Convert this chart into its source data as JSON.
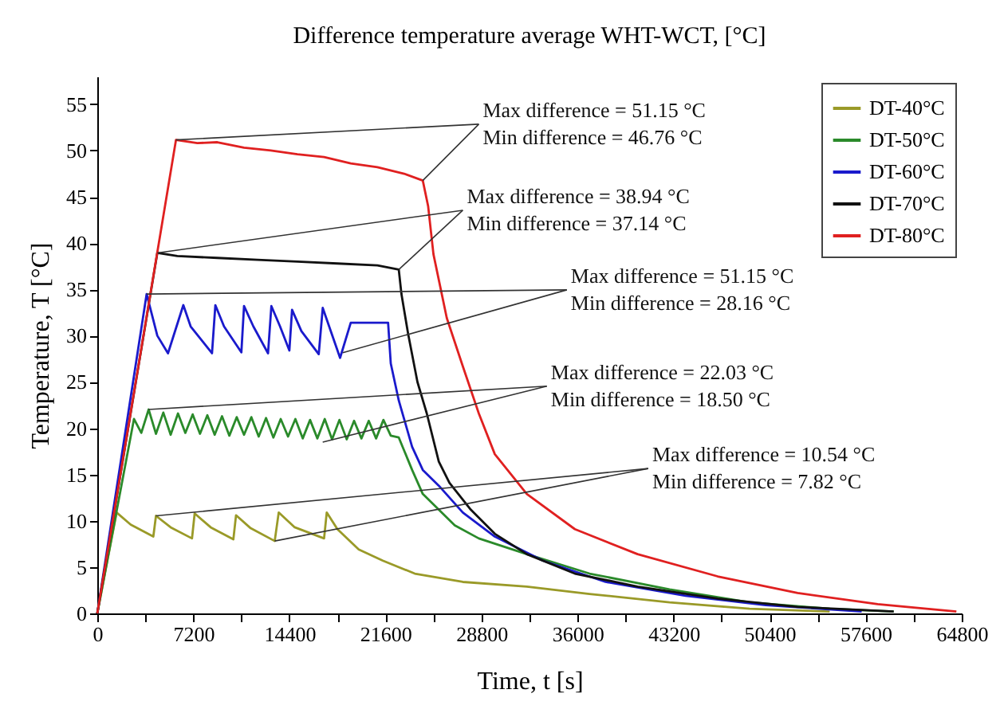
{
  "chart_data": {
    "type": "line",
    "title": "Difference temperature average WHT-WCT, [°C]",
    "xlabel": "Time, t [s]",
    "ylabel": "Temperature, T [°C]",
    "xlim": [
      0,
      64800
    ],
    "ylim": [
      0,
      58
    ],
    "xticks": [
      0,
      {
        "value": 3600,
        "label": null
      },
      7200,
      {
        "value": 10800,
        "label": null
      },
      14400,
      {
        "value": 18000,
        "label": null
      },
      21600,
      {
        "value": 25200,
        "label": null
      },
      28800,
      {
        "value": 32400,
        "label": null
      },
      36000,
      {
        "value": 39600,
        "label": null
      },
      43200,
      {
        "value": 46800,
        "label": null
      },
      50400,
      {
        "value": 54000,
        "label": null
      },
      57600,
      {
        "value": 61200,
        "label": null
      },
      64800
    ],
    "yticks": [
      0,
      5,
      10,
      15,
      20,
      25,
      30,
      35,
      40,
      45,
      50,
      55
    ],
    "grid": false,
    "legend": "top right",
    "marker": "none",
    "line_style": "solid",
    "series": [
      {
        "name": "DT-40°C",
        "color": "#9a9a28",
        "x": [
          0,
          1450,
          2500,
          4200,
          4400,
          5500,
          7100,
          7300,
          8500,
          10200,
          10400,
          11500,
          13300,
          13600,
          14800,
          17000,
          17200,
          18000,
          19600,
          21400,
          23800,
          27400,
          32200,
          36900,
          42900,
          48900,
          54900
        ],
        "values": [
          0,
          10.9,
          9.6,
          8.3,
          10.54,
          9.3,
          8.1,
          10.8,
          9.3,
          8.0,
          10.6,
          9.2,
          7.82,
          10.9,
          9.3,
          8.1,
          10.9,
          9.1,
          6.9,
          5.7,
          4.3,
          3.4,
          2.9,
          2.1,
          1.2,
          0.5,
          0.2
        ]
      },
      {
        "name": "DT-50°C",
        "color": "#2a8a2a",
        "x": [
          0,
          2750,
          3300,
          3850,
          4400,
          4950,
          5500,
          6050,
          6600,
          7150,
          7700,
          8250,
          8800,
          9350,
          9900,
          10450,
          11000,
          11550,
          12100,
          12650,
          13200,
          13750,
          14300,
          14850,
          15400,
          15950,
          16500,
          17050,
          17600,
          18150,
          18700,
          19250,
          19800,
          20350,
          20900,
          21450,
          22000,
          22600,
          23600,
          24400,
          25600,
          26800,
          28600,
          32200,
          36900,
          42900,
          48900,
          54900,
          59700
        ],
        "values": [
          0,
          21.0,
          19.5,
          22.03,
          19.4,
          21.7,
          19.3,
          21.6,
          19.5,
          21.5,
          19.4,
          21.4,
          19.3,
          21.3,
          19.2,
          21.2,
          19.3,
          21.2,
          19.1,
          21.1,
          19.0,
          21.0,
          19.1,
          21.0,
          18.9,
          20.9,
          18.9,
          21.0,
          18.8,
          20.9,
          18.8,
          20.8,
          18.9,
          20.8,
          18.9,
          20.9,
          19.2,
          19.0,
          15.5,
          12.9,
          11.2,
          9.5,
          8.1,
          6.4,
          4.3,
          2.6,
          1.2,
          0.5,
          0.2
        ]
      },
      {
        "name": "DT-60°C",
        "color": "#1a1acc",
        "x": [
          0,
          3700,
          4500,
          5300,
          6450,
          7000,
          8600,
          8850,
          9500,
          10800,
          11000,
          11700,
          12800,
          13050,
          13700,
          14400,
          14600,
          15300,
          16600,
          16900,
          17500,
          18200,
          19000,
          21800,
          22000,
          22600,
          23600,
          24400,
          25600,
          27400,
          29800,
          33400,
          38100,
          44100,
          50100,
          57300
        ],
        "values": [
          0,
          34.5,
          30,
          28.1,
          33.3,
          31,
          28.1,
          33.3,
          31,
          28.2,
          33.2,
          31,
          28.1,
          33.2,
          31,
          28.4,
          32.8,
          30.5,
          28,
          33,
          30.5,
          27.6,
          31.4,
          31.4,
          27,
          23,
          18,
          15.5,
          13.8,
          10.9,
          8.3,
          5.7,
          3.4,
          1.9,
          0.9,
          0.2
        ]
      },
      {
        "name": "DT-70°C",
        "color": "#111111",
        "x": [
          0,
          4500,
          6000,
          9000,
          12000,
          15000,
          18000,
          21000,
          22600,
          22800,
          23300,
          24000,
          24700,
          25600,
          26400,
          28000,
          29800,
          32200,
          35800,
          40500,
          46500,
          52500,
          59700
        ],
        "values": [
          0,
          38.94,
          38.6,
          38.4,
          38.2,
          38.0,
          37.8,
          37.6,
          37.14,
          34.5,
          30.2,
          25,
          21.6,
          16.4,
          14.1,
          11.2,
          8.6,
          6.4,
          4.3,
          2.9,
          1.6,
          0.7,
          0.2
        ]
      },
      {
        "name": "DT-80°C",
        "color": "#e02020",
        "x": [
          0,
          5900,
          7500,
          9000,
          11000,
          13000,
          15000,
          17000,
          19000,
          21000,
          23000,
          24400,
          24800,
          25200,
          26200,
          27400,
          28600,
          29800,
          32200,
          35800,
          40500,
          46500,
          52500,
          58500,
          64400
        ],
        "values": [
          0,
          51.15,
          50.8,
          50.9,
          50.3,
          50.0,
          49.6,
          49.3,
          48.6,
          48.2,
          47.5,
          46.76,
          44,
          38.8,
          31.9,
          26.7,
          21.6,
          17.2,
          12.9,
          9.1,
          6.4,
          4.0,
          2.2,
          1.0,
          0.2
        ]
      }
    ],
    "annotations": [
      {
        "text": "Max difference = 51.15 °C",
        "x": 5900,
        "y": 51.15
      },
      {
        "text": "Min difference = 46.76 °C",
        "x": 24400,
        "y": 46.76
      },
      {
        "text": "Max difference = 38.94 °C",
        "x": 4500,
        "y": 38.94
      },
      {
        "text": "Min difference = 37.14 °C",
        "x": 22600,
        "y": 37.14
      },
      {
        "text": "Max difference = 51.15 °C",
        "x": 3700,
        "y": 34.5
      },
      {
        "text": "Min difference = 28.16 °C",
        "x": 18400,
        "y": 28.16
      },
      {
        "text": "Max difference = 22.03 °C",
        "x": 3850,
        "y": 22.03
      },
      {
        "text": "Min difference = 18.50 °C",
        "x": 16900,
        "y": 18.5
      },
      {
        "text": "Max difference = 10.54 °C",
        "x": 4400,
        "y": 10.54
      },
      {
        "text": "Min difference = 7.82 °C",
        "x": 13300,
        "y": 7.82
      }
    ]
  }
}
